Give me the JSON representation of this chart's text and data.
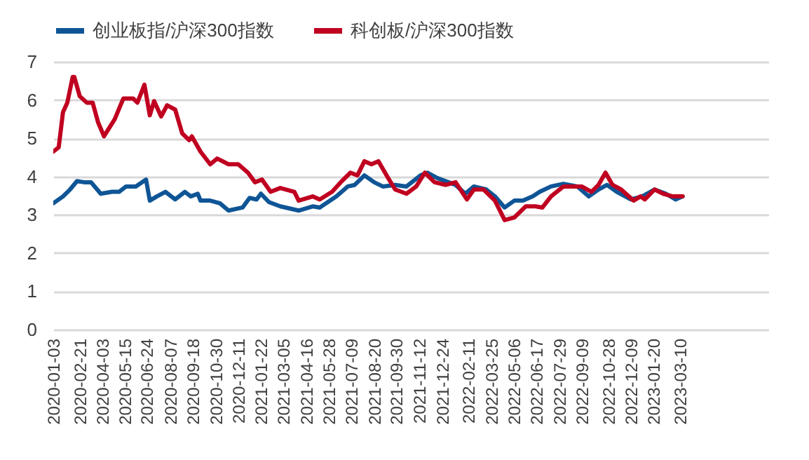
{
  "chart_data": {
    "type": "line",
    "legend": "top",
    "grid": "y",
    "line_style": "solid",
    "xlim": [
      "2020-01-03",
      "2023-08-21"
    ],
    "xticks": [
      "2020-01-03",
      "2020-02-21",
      "2020-04-03",
      "2020-05-15",
      "2020-06-24",
      "2020-08-07",
      "2020-09-18",
      "2020-10-30",
      "2020-12-11",
      "2021-01-22",
      "2021-03-05",
      "2021-04-16",
      "2021-05-28",
      "2021-07-09",
      "2021-08-20",
      "2021-09-30",
      "2021-11-12",
      "2021-12-24",
      "2022-02-11",
      "2022-03-25",
      "2022-05-06",
      "2022-06-17",
      "2022-07-29",
      "2022-09-09",
      "2022-10-28",
      "2022-12-09",
      "2023-01-20",
      "2023-03-10"
    ],
    "ylim": [
      0,
      7
    ],
    "yticks": [
      0,
      1,
      2,
      3,
      4,
      5,
      6,
      7
    ],
    "series": [
      {
        "name": "创业板指/沪深300指数",
        "color": "#0f5596",
        "x": [
          "2020-01-03",
          "2020-01-21",
          "2020-02-03",
          "2020-02-16",
          "2020-02-29",
          "2020-03-13",
          "2020-03-31",
          "2020-04-21",
          "2020-05-04",
          "2020-05-17",
          "2020-06-04",
          "2020-06-23",
          "2020-06-30",
          "2020-07-13",
          "2020-07-29",
          "2020-08-16",
          "2020-09-03",
          "2020-09-14",
          "2020-09-27",
          "2020-10-02",
          "2020-10-20",
          "2020-11-07",
          "2020-11-23",
          "2020-12-19",
          "2021-01-01",
          "2021-01-14",
          "2021-01-22",
          "2021-02-06",
          "2021-02-27",
          "2021-04-02",
          "2021-04-28",
          "2021-05-11",
          "2021-06-11",
          "2021-07-02",
          "2021-07-15",
          "2021-08-02",
          "2021-08-20",
          "2021-09-05",
          "2021-09-28",
          "2021-10-19",
          "2021-11-14",
          "2021-11-27",
          "2021-12-15",
          "2022-01-05",
          "2022-01-18",
          "2022-02-05",
          "2022-02-21",
          "2022-03-16",
          "2022-04-01",
          "2022-04-19",
          "2022-05-07",
          "2022-05-23",
          "2022-06-10",
          "2022-06-23",
          "2022-07-14",
          "2022-08-06",
          "2022-09-01",
          "2022-09-22",
          "2022-10-10",
          "2022-10-26",
          "2022-11-13",
          "2022-12-09",
          "2022-12-30",
          "2023-01-22",
          "2023-02-12",
          "2023-03-02",
          "2023-03-15"
        ],
        "values": [
          3.3,
          3.48,
          3.66,
          3.88,
          3.85,
          3.85,
          3.55,
          3.6,
          3.6,
          3.74,
          3.74,
          3.92,
          3.37,
          3.48,
          3.6,
          3.4,
          3.6,
          3.48,
          3.55,
          3.37,
          3.37,
          3.3,
          3.11,
          3.19,
          3.44,
          3.4,
          3.55,
          3.33,
          3.22,
          3.11,
          3.22,
          3.19,
          3.48,
          3.74,
          3.78,
          4.03,
          3.85,
          3.74,
          3.78,
          3.74,
          4.03,
          4.1,
          3.96,
          3.85,
          3.78,
          3.55,
          3.74,
          3.66,
          3.48,
          3.19,
          3.37,
          3.37,
          3.48,
          3.6,
          3.74,
          3.81,
          3.74,
          3.48,
          3.66,
          3.78,
          3.6,
          3.4,
          3.48,
          3.66,
          3.55,
          3.4,
          3.48
        ]
      },
      {
        "name": "科创板/沪深300指数",
        "color": "#c00020",
        "x": [
          "2020-01-03",
          "2020-01-13",
          "2020-01-21",
          "2020-01-29",
          "2020-02-08",
          "2020-02-11",
          "2020-02-21",
          "2020-03-05",
          "2020-03-16",
          "2020-03-26",
          "2020-04-06",
          "2020-04-26",
          "2020-05-12",
          "2020-05-30",
          "2020-06-07",
          "2020-06-20",
          "2020-06-30",
          "2020-07-08",
          "2020-07-21",
          "2020-08-01",
          "2020-08-16",
          "2020-08-29",
          "2020-09-11",
          "2020-09-16",
          "2020-10-02",
          "2020-10-20",
          "2020-11-02",
          "2020-11-23",
          "2020-12-11",
          "2020-12-29",
          "2021-01-11",
          "2021-01-24",
          "2021-02-09",
          "2021-02-27",
          "2021-03-25",
          "2021-04-02",
          "2021-04-28",
          "2021-05-11",
          "2021-06-03",
          "2021-06-19",
          "2021-07-07",
          "2021-07-20",
          "2021-08-02",
          "2021-08-15",
          "2021-08-28",
          "2021-09-15",
          "2021-09-28",
          "2021-10-19",
          "2021-11-06",
          "2021-11-22",
          "2021-12-10",
          "2021-12-31",
          "2022-01-18",
          "2022-02-08",
          "2022-02-21",
          "2022-03-11",
          "2022-04-01",
          "2022-04-19",
          "2022-05-07",
          "2022-05-20",
          "2022-05-28",
          "2022-06-15",
          "2022-06-28",
          "2022-07-14",
          "2022-08-06",
          "2022-09-09",
          "2022-09-27",
          "2022-10-10",
          "2022-10-23",
          "2022-11-05",
          "2022-11-21",
          "2022-12-14",
          "2022-12-27",
          "2023-01-04",
          "2023-01-22",
          "2023-02-07",
          "2023-02-25",
          "2023-03-15"
        ],
        "values": [
          4.65,
          4.76,
          5.68,
          5.93,
          6.6,
          6.6,
          6.1,
          5.93,
          5.93,
          5.42,
          5.05,
          5.5,
          6.04,
          6.04,
          5.93,
          6.4,
          5.6,
          5.97,
          5.57,
          5.86,
          5.75,
          5.13,
          4.95,
          5.05,
          4.65,
          4.32,
          4.47,
          4.32,
          4.32,
          4.1,
          3.85,
          3.92,
          3.6,
          3.7,
          3.6,
          3.37,
          3.48,
          3.4,
          3.6,
          3.85,
          4.1,
          4.03,
          4.4,
          4.32,
          4.4,
          3.96,
          3.66,
          3.55,
          3.74,
          4.1,
          3.85,
          3.78,
          3.85,
          3.4,
          3.66,
          3.66,
          3.37,
          2.86,
          2.93,
          3.11,
          3.22,
          3.22,
          3.19,
          3.48,
          3.74,
          3.74,
          3.6,
          3.78,
          4.1,
          3.78,
          3.66,
          3.37,
          3.48,
          3.4,
          3.66,
          3.55,
          3.48,
          3.48
        ]
      }
    ]
  }
}
